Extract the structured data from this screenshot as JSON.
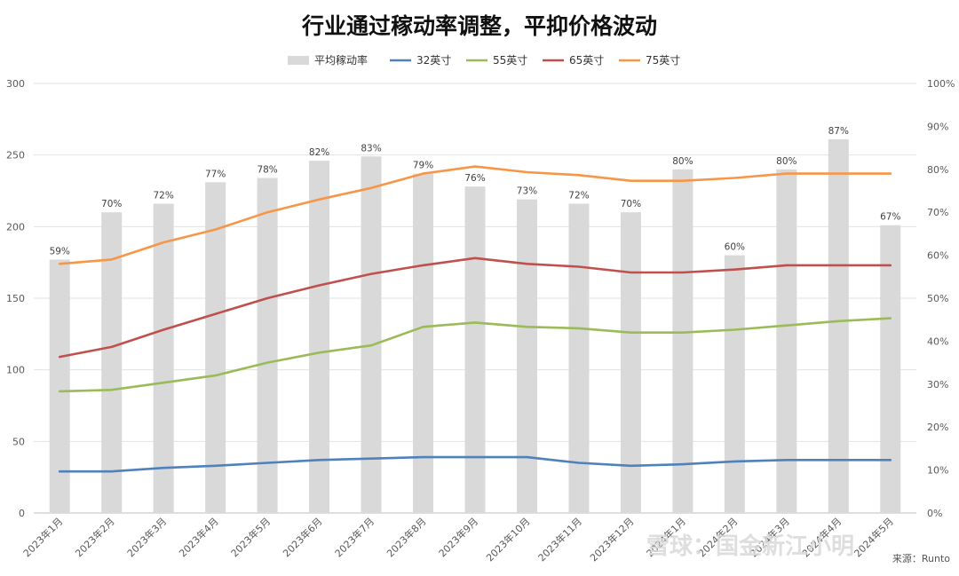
{
  "chart_data": {
    "type": "bar",
    "title": "行业通过稼动率调整，平抑价格波动",
    "categories": [
      "2023年1月",
      "2023年2月",
      "2023年3月",
      "2023年4月",
      "2023年5月",
      "2023年6月",
      "2023年7月",
      "2023年8月",
      "2023年9月",
      "2023年10月",
      "2023年11月",
      "2023年12月",
      "2024年1月",
      "2024年2月",
      "2024年3月",
      "2024年4月",
      "2024年5月"
    ],
    "bar_series": {
      "name": "平均稼动率",
      "axis": "right",
      "values": [
        59,
        70,
        72,
        77,
        78,
        82,
        83,
        79,
        76,
        73,
        72,
        70,
        80,
        60,
        80,
        87,
        67
      ],
      "labels": [
        "59%",
        "70%",
        "72%",
        "77%",
        "78%",
        "82%",
        "83%",
        "79%",
        "76%",
        "73%",
        "72%",
        "70%",
        "80%",
        "60%",
        "80%",
        "87%",
        "67%"
      ],
      "color": "#d9d9d9"
    },
    "series": [
      {
        "name": "32英寸",
        "axis": "left",
        "color": "#4f81bd",
        "values": [
          29,
          29,
          31.5,
          33,
          35,
          37,
          38,
          39,
          39,
          39,
          35,
          33,
          34,
          36,
          37,
          37,
          37
        ]
      },
      {
        "name": "55英寸",
        "axis": "left",
        "color": "#9bbb59",
        "values": [
          85,
          86,
          91,
          96,
          105,
          112,
          117,
          130,
          133,
          130,
          129,
          126,
          126,
          128,
          131,
          134,
          136
        ]
      },
      {
        "name": "65英寸",
        "axis": "left",
        "color": "#c0504d",
        "values": [
          109,
          116,
          128,
          139,
          150,
          159,
          167,
          173,
          178,
          174,
          172,
          168,
          168,
          170,
          173,
          173,
          173
        ]
      },
      {
        "name": "75英寸",
        "axis": "left",
        "color": "#f79646",
        "values": [
          174,
          177,
          189,
          198,
          210,
          219,
          227,
          237,
          242,
          238,
          236,
          232,
          232,
          234,
          237,
          237,
          237
        ]
      }
    ],
    "ylim": [
      0,
      300
    ],
    "yticks": [
      "0",
      "50",
      "100",
      "150",
      "200",
      "250",
      "300"
    ],
    "y2lim": [
      0,
      100
    ],
    "y2ticks": [
      "0%",
      "10%",
      "20%",
      "30%",
      "40%",
      "50%",
      "60%",
      "70%",
      "80%",
      "90%",
      "100%"
    ],
    "grid": true,
    "legend_position": "top"
  },
  "watermark": "雪球：国金新江小明",
  "source": "来源：Runto"
}
